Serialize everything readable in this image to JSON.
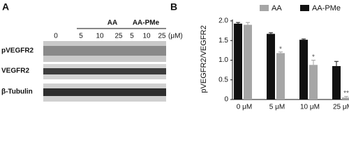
{
  "panel_a": {
    "label": "A",
    "groups": [
      "AA",
      "AA-PMe"
    ],
    "lanes": [
      "0",
      "5",
      "10",
      "25",
      "5",
      "10",
      "25"
    ],
    "unit": "(μM)",
    "rows": [
      "pVEGFR2",
      "VEGFR2",
      "β-Tubulin"
    ]
  },
  "chart_data": {
    "type": "bar",
    "panel_label": "B",
    "y_label": "pVEGFR2/VEGFR2",
    "categories": [
      "0 μM",
      "5 μM",
      "10 μM",
      "25 μM"
    ],
    "series": [
      {
        "name": "AA",
        "color": "#a6a6a6",
        "values": [
          1.9,
          1.18,
          0.88,
          0.05
        ],
        "errors": [
          0.06,
          0.03,
          0.12,
          0.03
        ],
        "significance": [
          null,
          "*",
          "*",
          "**"
        ]
      },
      {
        "name": "AA-PMe",
        "color": "#111111",
        "values": [
          1.93,
          1.67,
          1.52,
          0.85
        ],
        "errors": [
          0.03,
          0.03,
          0.02,
          0.12
        ]
      }
    ],
    "ylim": [
      0,
      2
    ],
    "yticks": [
      0,
      0.5,
      {
        "value": 1,
        "label": "1.0"
      },
      1.5,
      {
        "value": 2,
        "label": "2.0"
      }
    ]
  }
}
